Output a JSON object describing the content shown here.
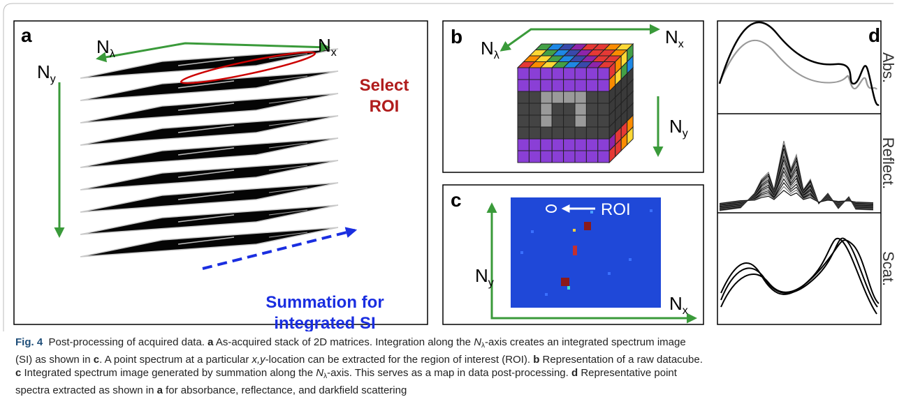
{
  "panels": {
    "a": {
      "label": "a",
      "n_lambda": {
        "base": "N",
        "sub": "λ"
      },
      "n_x": {
        "base": "N",
        "sub": "x"
      },
      "n_y": {
        "base": "N",
        "sub": "y"
      },
      "select_roi": [
        "Select",
        "ROI"
      ],
      "summation": [
        "Summation for",
        "integrated SI"
      ]
    },
    "b": {
      "label": "b",
      "n_lambda": {
        "base": "N",
        "sub": "λ"
      },
      "n_x": {
        "base": "N",
        "sub": "x"
      },
      "n_y": {
        "base": "N",
        "sub": "y"
      }
    },
    "c": {
      "label": "c",
      "roi": "ROI",
      "n_y": {
        "base": "N",
        "sub": "y"
      },
      "n_x": {
        "base": "N",
        "sub": "x"
      }
    },
    "d": {
      "label": "d",
      "rows": [
        "Abs.",
        "Reflect.",
        "Scat."
      ]
    }
  },
  "caption": {
    "lines": [
      [
        {
          "text": "Fig. 4",
          "style": "b"
        },
        {
          "text": "  Post-processing of acquired data. ",
          "style": "r"
        },
        {
          "text": "a",
          "style": "b"
        },
        {
          "text": " As-acquired stack of 2D matrices. Integration along the ",
          "style": "r"
        },
        {
          "text": "N",
          "style": "i"
        },
        {
          "text": "λ",
          "style": "sub"
        },
        {
          "text": "-axis creates an integrated spectrum image",
          "style": "r"
        }
      ],
      [
        {
          "text": "(SI) as shown in ",
          "style": "r"
        },
        {
          "text": "c",
          "style": "b"
        },
        {
          "text": ". A point spectrum at a particular ",
          "style": "r"
        },
        {
          "text": "x,y",
          "style": "i"
        },
        {
          "text": "-location can be extracted for the region of interest (ROI). ",
          "style": "r"
        },
        {
          "text": "b",
          "style": "b"
        },
        {
          "text": " Representation of a raw datacube.",
          "style": "r"
        }
      ],
      [
        {
          "text": "c",
          "style": "b"
        },
        {
          "text": " Integrated spectrum image generated by summation along the ",
          "style": "r"
        },
        {
          "text": "N",
          "style": "i"
        },
        {
          "text": "λ",
          "style": "sub"
        },
        {
          "text": "-axis. This serves as a map in data post-processing. ",
          "style": "r"
        },
        {
          "text": "d",
          "style": "b"
        },
        {
          "text": " Representative point",
          "style": "r"
        }
      ],
      [
        {
          "text": "spectra extracted as shown in ",
          "style": "r"
        },
        {
          "text": "a",
          "style": "b"
        },
        {
          "text": " for absorbance, reflectance, and darkfield scattering",
          "style": "r"
        }
      ]
    ]
  }
}
